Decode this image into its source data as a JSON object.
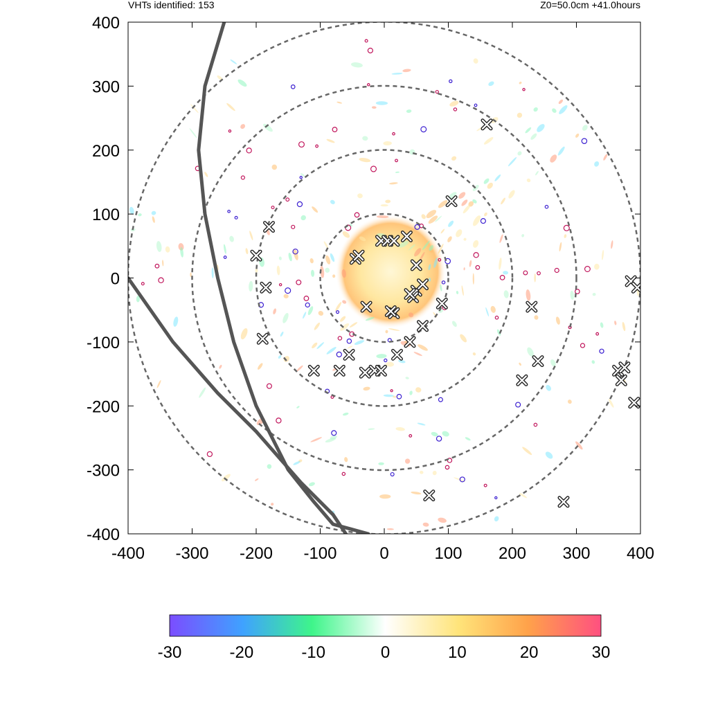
{
  "header": {
    "left_text": "VHTs identified: 153",
    "right_text": "Z0=50.0cm  +41.0hours"
  },
  "chart_data": {
    "type": "scatter",
    "xlim": [
      -400,
      400
    ],
    "ylim": [
      -400,
      400
    ],
    "x_ticks": [
      -400,
      -300,
      -200,
      -100,
      0,
      100,
      200,
      300,
      400
    ],
    "y_ticks": [
      -400,
      -300,
      -200,
      -100,
      0,
      100,
      200,
      300,
      400
    ],
    "x_tick_labels": [
      "-400",
      "-300",
      "-200",
      "-100",
      "0",
      "100",
      "200",
      "300",
      "400"
    ],
    "y_tick_labels": [
      "-400",
      "-300",
      "-200",
      "-100",
      "0",
      "100",
      "200",
      "300",
      "400"
    ],
    "range_rings": [
      100,
      200,
      300,
      400
    ],
    "colorbar": {
      "min": -30,
      "max": 30,
      "ticks": [
        -30,
        -20,
        -10,
        0,
        10,
        20,
        30
      ],
      "tick_labels": [
        "-30",
        "-20",
        "-10",
        "0",
        "10",
        "20",
        "30"
      ],
      "colors": [
        "#7b4dff",
        "#3fd7f5",
        "#3ef58a",
        "#ffffff",
        "#ffe47a",
        "#ffa24a",
        "#ff5080"
      ]
    },
    "track_lines": [
      [
        [
          -250,
          400
        ],
        [
          -280,
          300
        ],
        [
          -290,
          200
        ],
        [
          -280,
          100
        ],
        [
          -260,
          0
        ],
        [
          -235,
          -100
        ],
        [
          -200,
          -200
        ],
        [
          -150,
          -300
        ],
        [
          -110,
          -350
        ],
        [
          -80,
          -385
        ],
        [
          -25,
          -400
        ]
      ],
      [
        [
          -400,
          0
        ],
        [
          -330,
          -100
        ],
        [
          -260,
          -180
        ],
        [
          -200,
          -240
        ],
        [
          -130,
          -320
        ],
        [
          -80,
          -370
        ],
        [
          -60,
          -400
        ]
      ]
    ],
    "vht_markers": [
      [
        160,
        240
      ],
      [
        105,
        120
      ],
      [
        -180,
        80
      ],
      [
        -200,
        35
      ],
      [
        -185,
        -15
      ],
      [
        -190,
        -95
      ],
      [
        -110,
        -145
      ],
      [
        -70,
        -145
      ],
      [
        -55,
        -120
      ],
      [
        -30,
        -148
      ],
      [
        -15,
        -145
      ],
      [
        -5,
        -145
      ],
      [
        20,
        -120
      ],
      [
        40,
        -100
      ],
      [
        60,
        -75
      ],
      [
        90,
        -40
      ],
      [
        50,
        -20
      ],
      [
        60,
        -10
      ],
      [
        45,
        -30
      ],
      [
        40,
        -25
      ],
      [
        15,
        -55
      ],
      [
        10,
        -52
      ],
      [
        -28,
        -45
      ],
      [
        -45,
        30
      ],
      [
        -40,
        35
      ],
      [
        -5,
        58
      ],
      [
        5,
        58
      ],
      [
        15,
        58
      ],
      [
        35,
        65
      ],
      [
        50,
        20
      ],
      [
        230,
        -45
      ],
      [
        240,
        -130
      ],
      [
        215,
        -160
      ],
      [
        365,
        -145
      ],
      [
        375,
        -140
      ],
      [
        370,
        -160
      ],
      [
        390,
        -195
      ],
      [
        385,
        -5
      ],
      [
        395,
        -15
      ],
      [
        280,
        -350
      ],
      [
        70,
        -340
      ]
    ]
  }
}
